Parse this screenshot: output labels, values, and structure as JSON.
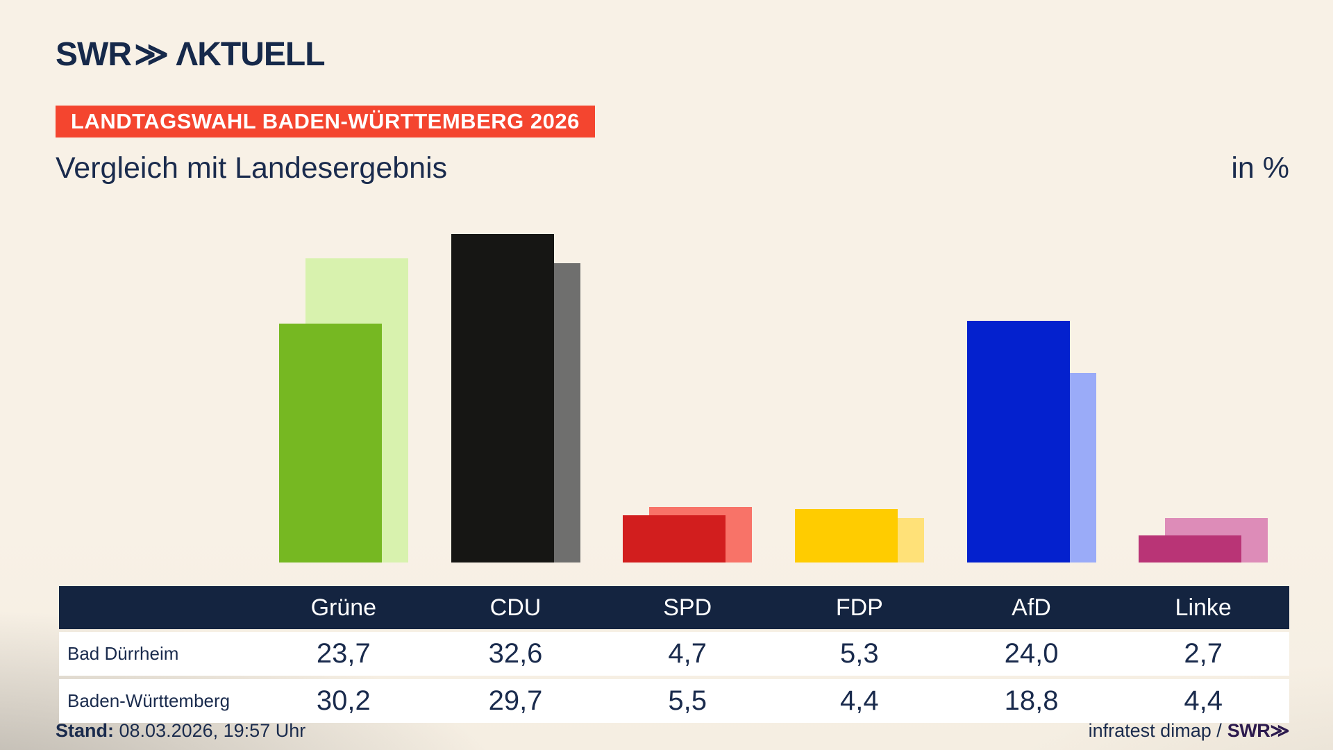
{
  "logo": {
    "brand": "SWR",
    "chevrons": "≫",
    "word": "ΛKTUELL"
  },
  "banner": {
    "text": "LANDTAGSWAHL BADEN-WÜRTTEMBERG 2026",
    "bg_color": "#F4452F"
  },
  "footer": {
    "stand_label": "Stand:",
    "stand_value": "08.03.2026, 19:57 Uhr",
    "source": "infratest dimap /",
    "source_logo": "SWR≫"
  },
  "table": {
    "row_labels": [
      "Bad Dürrheim",
      "Baden-Württemberg"
    ]
  },
  "chart_data": {
    "type": "bar",
    "title": "Vergleich mit Landesergebnis",
    "unit": "in %",
    "categories": [
      "Grüne",
      "CDU",
      "SPD",
      "FDP",
      "AfD",
      "Linke"
    ],
    "series": [
      {
        "name": "Bad Dürrheim",
        "role": "city",
        "values": [
          23.7,
          32.6,
          4.7,
          5.3,
          24.0,
          2.7
        ]
      },
      {
        "name": "Baden-Württemberg",
        "role": "land",
        "values": [
          30.2,
          29.7,
          5.5,
          4.4,
          18.8,
          4.4
        ]
      }
    ],
    "value_format": "decimal-comma",
    "ylim": [
      0,
      35
    ],
    "grid": false,
    "legend": "table-below",
    "party_colors": [
      {
        "party": "Grüne",
        "city": "#76B822",
        "land": "#D8F2AE"
      },
      {
        "party": "CDU",
        "city": "#161614",
        "land": "#6F6F6E"
      },
      {
        "party": "SPD",
        "city": "#D21E1E",
        "land": "#F87368"
      },
      {
        "party": "FDP",
        "city": "#FFCC00",
        "land": "#FFE178"
      },
      {
        "party": "AfD",
        "city": "#0421CE",
        "land": "#9AABF8"
      },
      {
        "party": "Linke",
        "city": "#B93476",
        "land": "#DD8CB8"
      }
    ],
    "colors": {
      "background": "#F8F1E6",
      "navy_text": "#1A2B4D",
      "table_header_bg": "#142440",
      "banner_bg": "#F4452F",
      "source_logo_color": "#2C1A4E"
    }
  }
}
